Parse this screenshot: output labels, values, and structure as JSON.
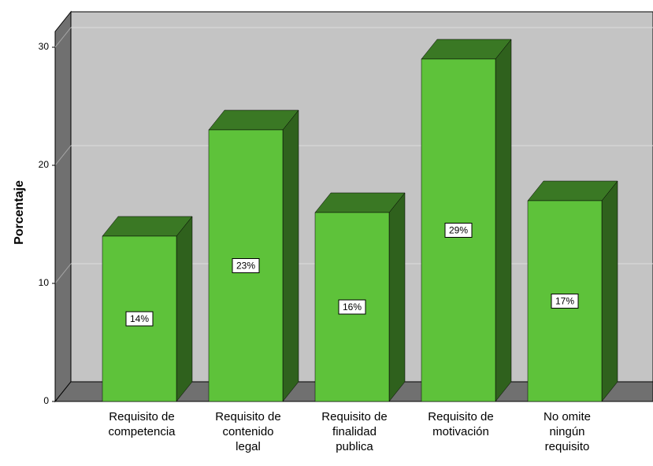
{
  "chart_data": {
    "type": "bar3d",
    "ylabel": "Porcentaje",
    "categories": [
      [
        "Requisito de",
        "competencia"
      ],
      [
        "Requisito de",
        "contenido",
        "legal"
      ],
      [
        "Requisito de",
        "finalidad",
        "publica"
      ],
      [
        "Requisito de",
        "motivación"
      ],
      [
        "No omite",
        "ningún",
        "requisito"
      ]
    ],
    "values": [
      14,
      23,
      16,
      29,
      17
    ],
    "value_labels": [
      "14%",
      "23%",
      "16%",
      "29%",
      "17%"
    ],
    "color": "#5ec23a",
    "ylim": [
      0,
      30
    ],
    "yticks": [
      0,
      10,
      20,
      30
    ],
    "grid": true
  }
}
